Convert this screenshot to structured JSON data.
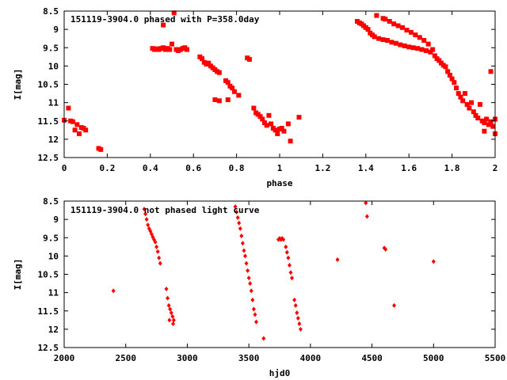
{
  "chart_data": [
    {
      "type": "scatter",
      "title": "151119-3904.0 phased with P=358.0day",
      "xlabel": "phase",
      "ylabel": "I[mag]",
      "xlim": [
        0,
        2
      ],
      "ylim": [
        12.5,
        8.5
      ],
      "y_inverted": true,
      "xticks": [
        "0",
        "0.2",
        "0.4",
        "0.6",
        "0.8",
        "1",
        "1.2",
        "1.4",
        "1.6",
        "1.8",
        "2"
      ],
      "yticks": [
        "8.5",
        "9",
        "9.5",
        "10",
        "10.5",
        "11",
        "11.5",
        "12",
        "12.5"
      ],
      "color": "#ff0000",
      "marker": "filled-square",
      "series": [
        {
          "points": [
            [
              0.0,
              11.48
            ],
            [
              0.02,
              11.15
            ],
            [
              0.03,
              11.5
            ],
            [
              0.04,
              11.52
            ],
            [
              0.05,
              11.75
            ],
            [
              0.06,
              11.6
            ],
            [
              0.07,
              11.85
            ],
            [
              0.08,
              11.68
            ],
            [
              0.09,
              11.7
            ],
            [
              0.1,
              11.75
            ],
            [
              0.16,
              12.25
            ],
            [
              0.17,
              12.28
            ],
            [
              0.41,
              9.52
            ],
            [
              0.42,
              9.55
            ],
            [
              0.43,
              9.53
            ],
            [
              0.44,
              9.55
            ],
            [
              0.45,
              9.52
            ],
            [
              0.46,
              9.5
            ],
            [
              0.46,
              8.88
            ],
            [
              0.47,
              9.55
            ],
            [
              0.48,
              9.52
            ],
            [
              0.49,
              9.55
            ],
            [
              0.5,
              9.4
            ],
            [
              0.51,
              8.55
            ],
            [
              0.52,
              9.55
            ],
            [
              0.53,
              9.58
            ],
            [
              0.54,
              9.55
            ],
            [
              0.55,
              9.52
            ],
            [
              0.56,
              9.5
            ],
            [
              0.57,
              9.55
            ],
            [
              0.63,
              9.75
            ],
            [
              0.64,
              9.8
            ],
            [
              0.65,
              9.9
            ],
            [
              0.66,
              9.95
            ],
            [
              0.67,
              9.92
            ],
            [
              0.68,
              10.0
            ],
            [
              0.69,
              10.05
            ],
            [
              0.7,
              10.1
            ],
            [
              0.71,
              10.15
            ],
            [
              0.72,
              10.18
            ],
            [
              0.7,
              10.92
            ],
            [
              0.72,
              10.95
            ],
            [
              0.75,
              10.4
            ],
            [
              0.76,
              10.45
            ],
            [
              0.77,
              10.55
            ],
            [
              0.78,
              10.6
            ],
            [
              0.79,
              10.7
            ],
            [
              0.81,
              10.8
            ],
            [
              0.76,
              10.92
            ],
            [
              0.85,
              9.78
            ],
            [
              0.86,
              9.82
            ],
            [
              0.88,
              11.15
            ],
            [
              0.89,
              11.28
            ],
            [
              0.9,
              11.32
            ],
            [
              0.91,
              11.38
            ],
            [
              0.92,
              11.45
            ],
            [
              0.93,
              11.55
            ],
            [
              0.94,
              11.62
            ],
            [
              0.95,
              11.35
            ],
            [
              0.96,
              11.58
            ],
            [
              0.97,
              11.7
            ],
            [
              0.98,
              11.75
            ],
            [
              0.99,
              11.85
            ],
            [
              1.0,
              11.72
            ],
            [
              1.01,
              11.7
            ],
            [
              1.02,
              11.78
            ],
            [
              1.04,
              11.58
            ],
            [
              1.05,
              12.05
            ],
            [
              1.09,
              11.4
            ],
            [
              1.36,
              8.78
            ],
            [
              1.37,
              8.82
            ],
            [
              1.38,
              8.85
            ],
            [
              1.39,
              8.9
            ],
            [
              1.4,
              8.95
            ],
            [
              1.41,
              9.0
            ],
            [
              1.42,
              9.1
            ],
            [
              1.43,
              9.15
            ],
            [
              1.44,
              9.2
            ],
            [
              1.45,
              8.62
            ],
            [
              1.46,
              9.25
            ],
            [
              1.48,
              8.7
            ],
            [
              1.48,
              9.28
            ],
            [
              1.49,
              8.72
            ],
            [
              1.5,
              9.3
            ],
            [
              1.51,
              8.78
            ],
            [
              1.52,
              9.35
            ],
            [
              1.53,
              8.85
            ],
            [
              1.54,
              9.38
            ],
            [
              1.55,
              8.9
            ],
            [
              1.56,
              9.42
            ],
            [
              1.57,
              8.95
            ],
            [
              1.58,
              9.45
            ],
            [
              1.59,
              9.02
            ],
            [
              1.6,
              9.48
            ],
            [
              1.61,
              9.08
            ],
            [
              1.62,
              9.5
            ],
            [
              1.63,
              9.15
            ],
            [
              1.64,
              9.52
            ],
            [
              1.65,
              9.22
            ],
            [
              1.66,
              9.55
            ],
            [
              1.67,
              9.3
            ],
            [
              1.68,
              9.58
            ],
            [
              1.69,
              9.4
            ],
            [
              1.7,
              9.62
            ],
            [
              1.71,
              9.55
            ],
            [
              1.72,
              9.72
            ],
            [
              1.73,
              9.8
            ],
            [
              1.74,
              9.85
            ],
            [
              1.75,
              9.92
            ],
            [
              1.76,
              9.98
            ],
            [
              1.77,
              10.02
            ],
            [
              1.78,
              10.15
            ],
            [
              1.79,
              10.25
            ],
            [
              1.8,
              10.35
            ],
            [
              1.81,
              10.45
            ],
            [
              1.82,
              10.6
            ],
            [
              1.83,
              10.75
            ],
            [
              1.84,
              10.85
            ],
            [
              1.85,
              10.95
            ],
            [
              1.86,
              10.75
            ],
            [
              1.87,
              11.05
            ],
            [
              1.88,
              11.15
            ],
            [
              1.89,
              11.0
            ],
            [
              1.9,
              11.25
            ],
            [
              1.91,
              11.35
            ],
            [
              1.92,
              11.42
            ],
            [
              1.93,
              11.05
            ],
            [
              1.94,
              11.5
            ],
            [
              1.95,
              11.55
            ],
            [
              1.95,
              11.78
            ],
            [
              1.96,
              11.45
            ],
            [
              1.97,
              11.6
            ],
            [
              1.98,
              11.52
            ],
            [
              1.98,
              10.15
            ],
            [
              1.99,
              11.65
            ],
            [
              2.0,
              11.45
            ],
            [
              2.0,
              11.85
            ]
          ]
        }
      ]
    },
    {
      "type": "scatter",
      "title": "151119-3904.0 not phased light curve",
      "xlabel": "hjd0",
      "ylabel": "I[mag]",
      "xlim": [
        2000,
        5500
      ],
      "ylim": [
        12.5,
        8.5
      ],
      "y_inverted": true,
      "xticks": [
        "2000",
        "2500",
        "3000",
        "3500",
        "4000",
        "4500",
        "5000",
        "5500"
      ],
      "yticks": [
        "8.5",
        "9",
        "9.5",
        "10",
        "10.5",
        "11",
        "11.5",
        "12",
        "12.5"
      ],
      "color": "#ff0000",
      "marker": "filled-diamond",
      "series": [
        {
          "points": [
            [
              2400,
              10.95
            ],
            [
              2650,
              8.72
            ],
            [
              2660,
              8.85
            ],
            [
              2670,
              9.0
            ],
            [
              2680,
              9.15
            ],
            [
              2690,
              9.25
            ],
            [
              2700,
              9.32
            ],
            [
              2710,
              9.4
            ],
            [
              2720,
              9.48
            ],
            [
              2730,
              9.55
            ],
            [
              2740,
              9.62
            ],
            [
              2750,
              9.75
            ],
            [
              2760,
              9.88
            ],
            [
              2770,
              10.05
            ],
            [
              2780,
              10.2
            ],
            [
              2830,
              10.9
            ],
            [
              2840,
              11.15
            ],
            [
              2850,
              11.35
            ],
            [
              2855,
              11.75
            ],
            [
              2860,
              11.45
            ],
            [
              2870,
              11.55
            ],
            [
              2880,
              11.65
            ],
            [
              2885,
              11.85
            ],
            [
              2890,
              11.75
            ],
            [
              3390,
              8.65
            ],
            [
              3400,
              8.8
            ],
            [
              3410,
              8.95
            ],
            [
              3420,
              9.1
            ],
            [
              3430,
              9.25
            ],
            [
              3440,
              9.45
            ],
            [
              3450,
              9.65
            ],
            [
              3460,
              9.85
            ],
            [
              3470,
              10.0
            ],
            [
              3480,
              10.2
            ],
            [
              3490,
              10.4
            ],
            [
              3500,
              10.6
            ],
            [
              3510,
              10.75
            ],
            [
              3520,
              10.95
            ],
            [
              3530,
              11.2
            ],
            [
              3540,
              11.45
            ],
            [
              3550,
              11.6
            ],
            [
              3560,
              11.8
            ],
            [
              3620,
              12.25
            ],
            [
              3740,
              9.55
            ],
            [
              3750,
              9.52
            ],
            [
              3760,
              9.55
            ],
            [
              3770,
              9.52
            ],
            [
              3780,
              9.55
            ],
            [
              3800,
              9.75
            ],
            [
              3810,
              9.9
            ],
            [
              3820,
              10.05
            ],
            [
              3830,
              10.25
            ],
            [
              3840,
              10.45
            ],
            [
              3850,
              10.6
            ],
            [
              3870,
              11.2
            ],
            [
              3880,
              11.35
            ],
            [
              3890,
              11.55
            ],
            [
              3900,
              11.7
            ],
            [
              3910,
              11.85
            ],
            [
              3920,
              12.0
            ],
            [
              4220,
              10.1
            ],
            [
              4450,
              8.55
            ],
            [
              4460,
              8.92
            ],
            [
              4600,
              9.78
            ],
            [
              4610,
              9.82
            ],
            [
              4680,
              11.35
            ],
            [
              5000,
              10.15
            ]
          ]
        }
      ]
    }
  ]
}
